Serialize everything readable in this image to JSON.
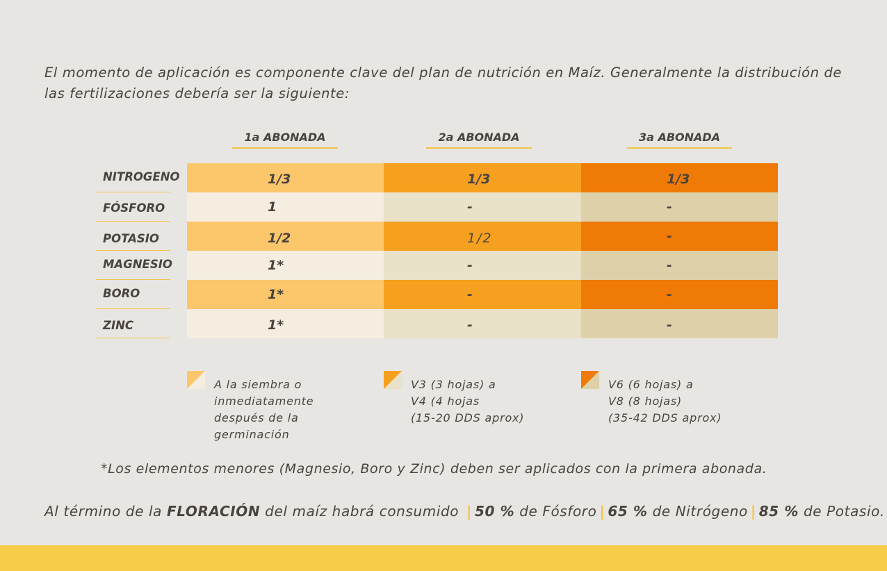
{
  "intro": "El momento de aplicación es componente clave del plan de nutrición en Maíz. Generalmente la distribución de las fertilizaciones debería ser la siguiente:",
  "columns": [
    "1a ABONADA",
    "2a ABONADA",
    "3a ABONADA"
  ],
  "rows": [
    {
      "label": "NITROGENO",
      "values": [
        "1/3",
        "1/3",
        "1/3"
      ]
    },
    {
      "label": "FÓSFORO",
      "values": [
        "1",
        "-",
        "-"
      ]
    },
    {
      "label": "POTASIO",
      "values": [
        "1/2",
        "1/2",
        "-"
      ]
    },
    {
      "label": "MAGNESIO",
      "values": [
        "1*",
        "-",
        "-"
      ]
    },
    {
      "label": "BORO",
      "values": [
        "1*",
        "-",
        "-"
      ]
    },
    {
      "label": "ZINC",
      "values": [
        "1*",
        "-",
        "-"
      ]
    }
  ],
  "legend": [
    "A la siembra o\ninmediatamente\ndespués de la\ngerminación",
    "V3 (3 hojas) a\nV4 (4 hojas\n(15-20 DDS aprox)",
    "V6 (6 hojas) a\nV8 (8 hojas)\n(35-42 DDS aprox)"
  ],
  "footnote": "*Los elementos menores (Magnesio, Boro y Zinc) deben ser aplicados con la primera abonada.",
  "summary": {
    "prefix": "Al término de la",
    "highlight": "FLORACIÓN",
    "middle": "del maíz habrá consumido",
    "sep": "|",
    "p1_value": "50 %",
    "p1_label": "de Fósforo",
    "p2_value": "65 %",
    "p2_label": "de Nitrógeno",
    "p3_value": "85 %",
    "p3_label": "de Potasio."
  },
  "colors": {
    "background": "#e8e6e3",
    "col1_strong": "#fcc66b",
    "col2_strong": "#f6a01f",
    "col3_strong": "#f07a06",
    "col1_light": "#f4ede0",
    "col2_light": "#e9e1c8",
    "col3_light": "#ded0a8",
    "accent": "#f6c445",
    "bottom_bar": "#f7cc49"
  }
}
